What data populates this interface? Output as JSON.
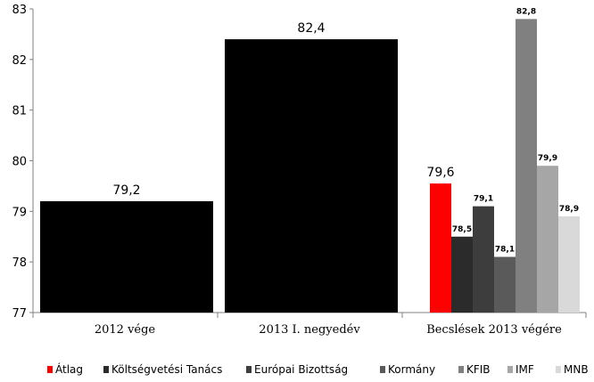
{
  "chart_data": {
    "type": "bar",
    "ylim": [
      77,
      83
    ],
    "yticks": [
      77,
      78,
      79,
      80,
      81,
      82,
      83
    ],
    "categories": [
      "2012 vége",
      "2013 I. negyedév",
      "Becslések 2013 végére"
    ],
    "bars": [
      {
        "category": "2012 vége",
        "value": 79.2,
        "label": "79,2",
        "color": "#000000"
      },
      {
        "category": "2013 I. negyedév",
        "value": 82.4,
        "label": "82,4",
        "color": "#000000"
      }
    ],
    "series": [
      {
        "name": "Átlag",
        "value": 79.55,
        "label": "79,6",
        "color": "#ff0000"
      },
      {
        "name": "Költségvetési Tanács",
        "value": 78.5,
        "label": "78,5",
        "color": "#2b2b2b"
      },
      {
        "name": "Európai Bizottság",
        "value": 79.1,
        "label": "79,1",
        "color": "#3d3d3d"
      },
      {
        "name": "Kormány",
        "value": 78.1,
        "label": "78,1",
        "color": "#5a5a5a"
      },
      {
        "name": "KFIB",
        "value": 82.8,
        "label": "82,8",
        "color": "#808080"
      },
      {
        "name": "IMF",
        "value": 79.9,
        "label": "79,9",
        "color": "#a6a6a6"
      },
      {
        "name": "MNB",
        "value": 78.9,
        "label": "78,9",
        "color": "#d9d9d9"
      }
    ],
    "legend_position": "bottom",
    "grid": false
  }
}
